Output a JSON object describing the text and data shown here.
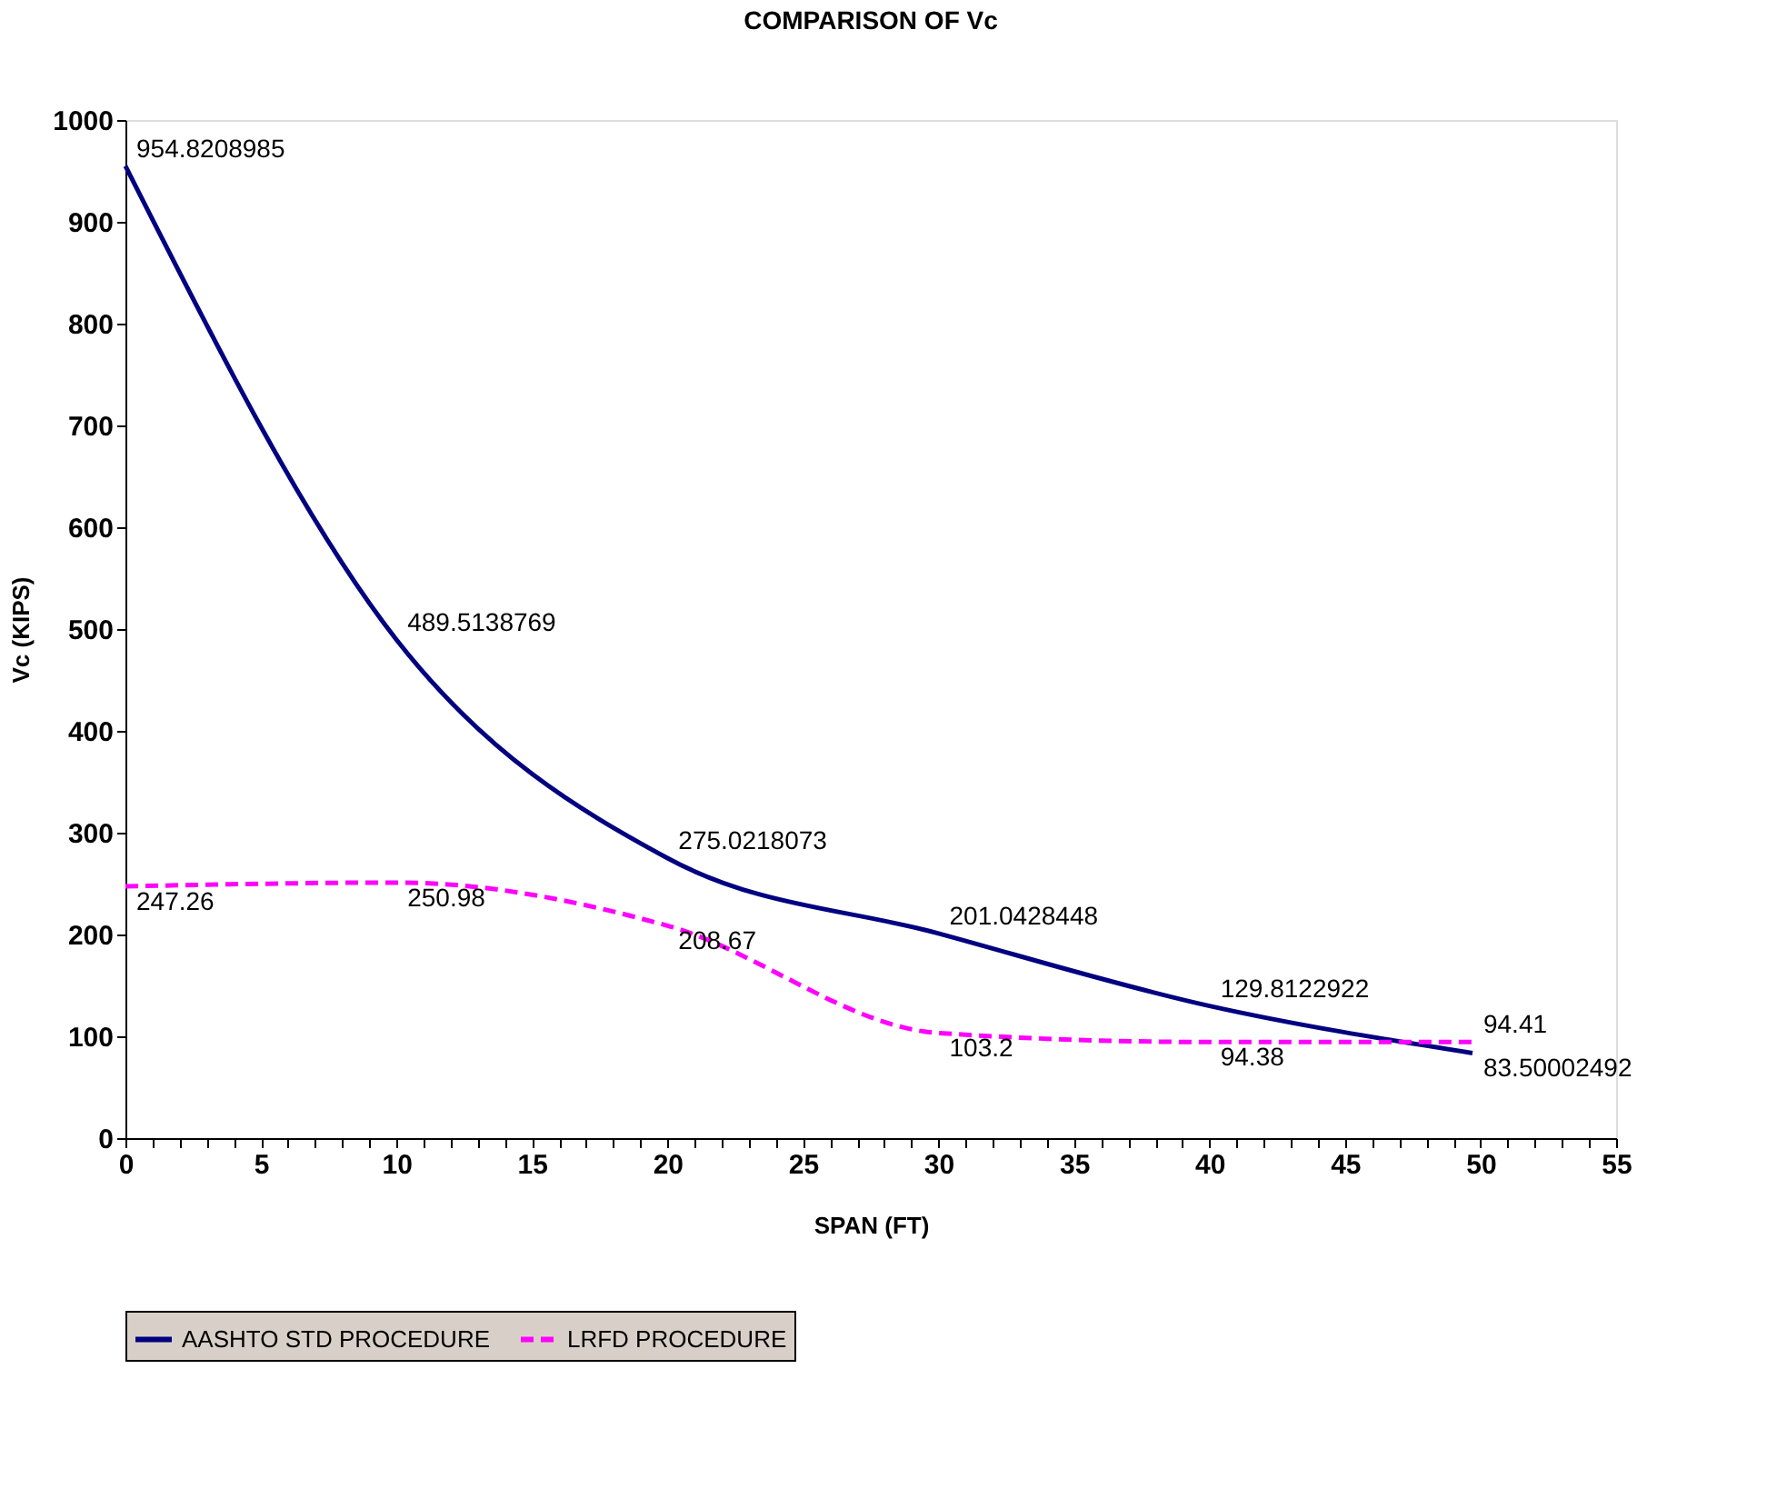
{
  "chart_data": {
    "type": "line",
    "title": "COMPARISON OF Vc",
    "xlabel": "SPAN (FT)",
    "ylabel": "Vc (KIPS)",
    "x": [
      0,
      10,
      20,
      30,
      40,
      49.7
    ],
    "series": [
      {
        "name": "AASHTO STD PROCEDURE",
        "color": "#000080",
        "line_style": "solid",
        "values": [
          954.8208985,
          489.5138769,
          275.0218073,
          201.0428448,
          129.8122922,
          83.50002492
        ]
      },
      {
        "name": "LRFD PROCEDURE",
        "color": "#ff00ff",
        "line_style": "dashed",
        "values": [
          247.26,
          250.98,
          208.67,
          103.2,
          94.38,
          94.41
        ]
      }
    ],
    "data_labels": true,
    "grid": false,
    "legend": "bottom",
    "marker": "none",
    "xlim": [
      0,
      55
    ],
    "ylim": [
      0,
      1000
    ],
    "xticks": [
      0,
      {
        "value": 1,
        "label": null
      },
      {
        "value": 2,
        "label": null
      },
      {
        "value": 3,
        "label": null
      },
      {
        "value": 4,
        "label": null
      },
      5,
      {
        "value": 6,
        "label": null
      },
      {
        "value": 7,
        "label": null
      },
      {
        "value": 8,
        "label": null
      },
      {
        "value": 9,
        "label": null
      },
      10,
      {
        "value": 11,
        "label": null
      },
      {
        "value": 12,
        "label": null
      },
      {
        "value": 13,
        "label": null
      },
      {
        "value": 14,
        "label": null
      },
      15,
      {
        "value": 16,
        "label": null
      },
      {
        "value": 17,
        "label": null
      },
      {
        "value": 18,
        "label": null
      },
      {
        "value": 19,
        "label": null
      },
      20,
      {
        "value": 21,
        "label": null
      },
      {
        "value": 22,
        "label": null
      },
      {
        "value": 23,
        "label": null
      },
      {
        "value": 24,
        "label": null
      },
      25,
      {
        "value": 26,
        "label": null
      },
      {
        "value": 27,
        "label": null
      },
      {
        "value": 28,
        "label": null
      },
      {
        "value": 29,
        "label": null
      },
      30,
      {
        "value": 31,
        "label": null
      },
      {
        "value": 32,
        "label": null
      },
      {
        "value": 33,
        "label": null
      },
      {
        "value": 34,
        "label": null
      },
      35,
      {
        "value": 36,
        "label": null
      },
      {
        "value": 37,
        "label": null
      },
      {
        "value": 38,
        "label": null
      },
      {
        "value": 39,
        "label": null
      },
      40,
      {
        "value": 41,
        "label": null
      },
      {
        "value": 42,
        "label": null
      },
      {
        "value": 43,
        "label": null
      },
      {
        "value": 44,
        "label": null
      },
      45,
      {
        "value": 46,
        "label": null
      },
      {
        "value": 47,
        "label": null
      },
      {
        "value": 48,
        "label": null
      },
      {
        "value": 49,
        "label": null
      },
      50,
      {
        "value": 51,
        "label": null
      },
      {
        "value": 52,
        "label": null
      },
      {
        "value": 53,
        "label": null
      },
      {
        "value": 54,
        "label": null
      },
      55
    ],
    "yticks": [
      0,
      100,
      200,
      300,
      400,
      500,
      600,
      700,
      800,
      900,
      1000
    ]
  }
}
